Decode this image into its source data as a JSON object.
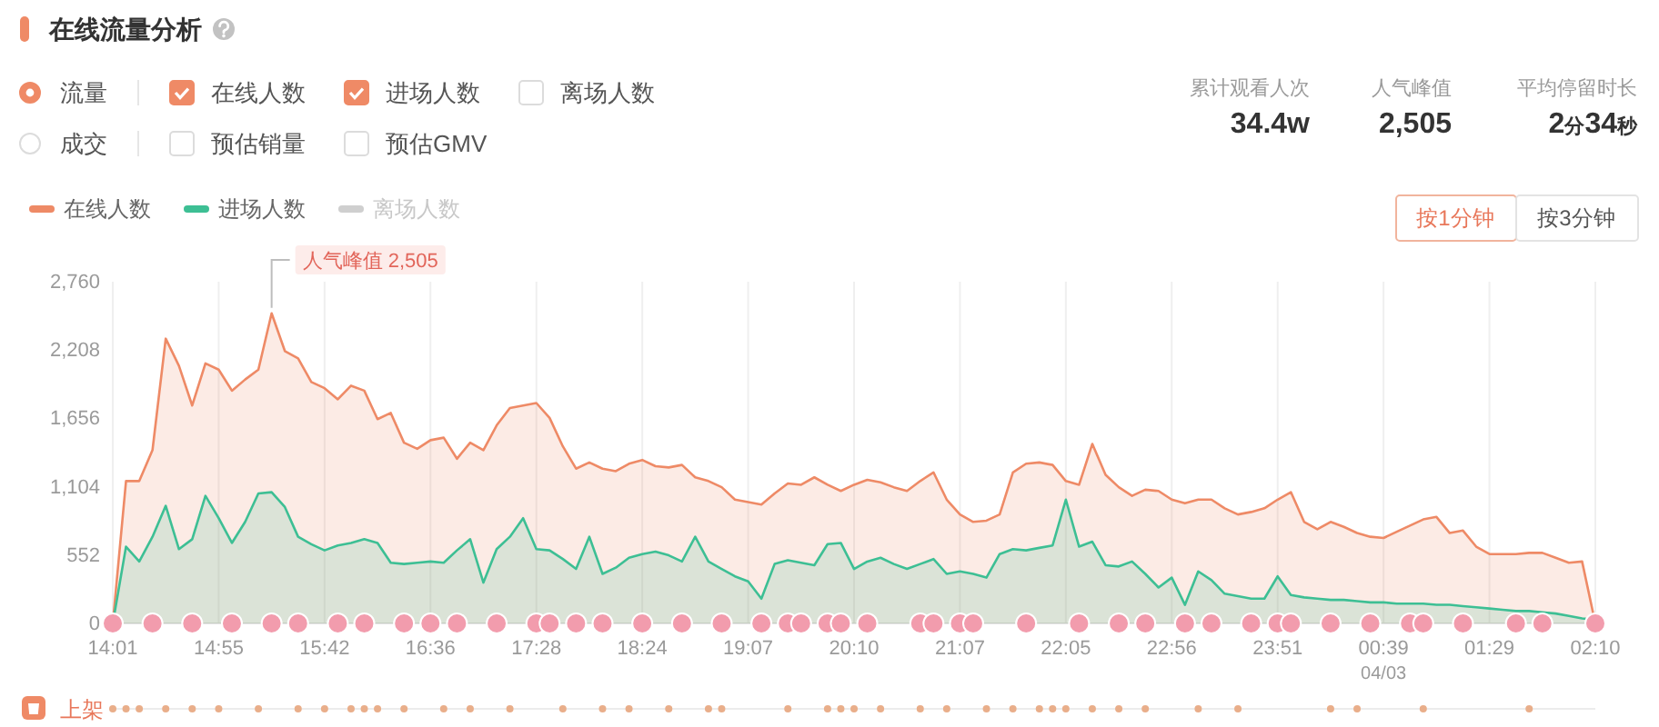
{
  "chart_data": {
    "type": "area",
    "title": "在线流量分析",
    "categories": [
      "14:01",
      null,
      null,
      null,
      null,
      null,
      null,
      null,
      "14:55",
      null,
      null,
      null,
      null,
      null,
      null,
      null,
      "15:42",
      null,
      null,
      null,
      null,
      null,
      null,
      null,
      "16:36",
      null,
      null,
      null,
      null,
      null,
      null,
      null,
      "17:28",
      null,
      null,
      null,
      null,
      null,
      null,
      null,
      "18:24",
      null,
      null,
      null,
      null,
      null,
      null,
      null,
      "19:07",
      null,
      null,
      null,
      null,
      null,
      null,
      null,
      "20:10",
      null,
      null,
      null,
      null,
      null,
      null,
      null,
      "21:07",
      null,
      null,
      null,
      null,
      null,
      null,
      null,
      "22:05",
      null,
      null,
      null,
      null,
      null,
      null,
      null,
      "22:56",
      null,
      null,
      null,
      null,
      null,
      null,
      null,
      "23:51",
      null,
      null,
      null,
      null,
      null,
      null,
      null,
      "00:39\n04/03",
      null,
      null,
      null,
      null,
      null,
      null,
      null,
      "01:29",
      null,
      null,
      null,
      null,
      null,
      null,
      null,
      "02:10"
    ],
    "series": [
      {
        "name": "在线人数",
        "color": "#ee8a66",
        "values": [
          0,
          1150,
          1150,
          1400,
          2300,
          2080,
          1760,
          2100,
          2050,
          1880,
          1970,
          2050,
          2505,
          2200,
          2140,
          1950,
          1900,
          1810,
          1920,
          1880,
          1650,
          1700,
          1460,
          1410,
          1480,
          1500,
          1330,
          1460,
          1400,
          1600,
          1740,
          1760,
          1780,
          1660,
          1430,
          1250,
          1300,
          1250,
          1230,
          1290,
          1320,
          1270,
          1260,
          1280,
          1180,
          1150,
          1100,
          1000,
          980,
          960,
          1050,
          1130,
          1120,
          1180,
          1120,
          1070,
          1120,
          1160,
          1140,
          1100,
          1070,
          1150,
          1220,
          1000,
          880,
          820,
          830,
          880,
          1220,
          1290,
          1300,
          1280,
          1150,
          1120,
          1450,
          1200,
          1100,
          1030,
          1080,
          1070,
          1000,
          970,
          1000,
          1000,
          930,
          880,
          900,
          930,
          1000,
          1060,
          820,
          760,
          820,
          780,
          730,
          700,
          690,
          740,
          790,
          840,
          860,
          730,
          750,
          620,
          560,
          560,
          560,
          570,
          570,
          530,
          490,
          500,
          0
        ]
      },
      {
        "name": "进场人数",
        "color": "#3dbf94",
        "values": [
          0,
          620,
          500,
          700,
          950,
          600,
          680,
          1030,
          850,
          650,
          820,
          1050,
          1060,
          940,
          700,
          640,
          590,
          630,
          650,
          680,
          650,
          490,
          480,
          490,
          500,
          490,
          590,
          680,
          330,
          600,
          700,
          850,
          600,
          590,
          520,
          440,
          700,
          400,
          450,
          530,
          560,
          580,
          550,
          500,
          700,
          500,
          440,
          380,
          340,
          200,
          480,
          510,
          490,
          470,
          640,
          650,
          440,
          500,
          530,
          480,
          440,
          480,
          520,
          400,
          420,
          400,
          370,
          560,
          600,
          590,
          610,
          630,
          1000,
          620,
          660,
          470,
          460,
          500,
          400,
          290,
          370,
          150,
          420,
          350,
          240,
          220,
          200,
          200,
          380,
          230,
          210,
          200,
          190,
          190,
          180,
          170,
          170,
          160,
          160,
          160,
          150,
          150,
          140,
          130,
          120,
          110,
          100,
          100,
          90,
          80,
          60,
          40,
          30
        ]
      },
      {
        "type": "scatter",
        "color": "#f29cad",
        "marker": "circle",
        "values": [
          0,
          null,
          null,
          0,
          null,
          null,
          0,
          null,
          null,
          0,
          null,
          null,
          0,
          null,
          0,
          null,
          null,
          0,
          null,
          0,
          null,
          null,
          0,
          null,
          0,
          null,
          0,
          null,
          null,
          0,
          null,
          null,
          0,
          0,
          null,
          0,
          null,
          0,
          null,
          null,
          0,
          null,
          null,
          0,
          null,
          null,
          0,
          null,
          null,
          0,
          null,
          0,
          0,
          null,
          0,
          0,
          null,
          0,
          null,
          null,
          null,
          0,
          0,
          null,
          0,
          0,
          null,
          null,
          null,
          0,
          null,
          null,
          null,
          0,
          null,
          null,
          0,
          null,
          0,
          null,
          null,
          0,
          null,
          0,
          null,
          null,
          0,
          null,
          0,
          0,
          null,
          null,
          0,
          null,
          null,
          0,
          null,
          null,
          0,
          0,
          null,
          null,
          0,
          null,
          null,
          null,
          0,
          null,
          0,
          null,
          null,
          null,
          0
        ]
      },
      {
        "name": "离场人数",
        "color": "#cfcfcf",
        "values": [
          null,
          null,
          null,
          null,
          null,
          null,
          null,
          null,
          null,
          null,
          null,
          null,
          null,
          null,
          null,
          null,
          null,
          null,
          null,
          null,
          null,
          null,
          null,
          null,
          null,
          null,
          null,
          null,
          null,
          null,
          null,
          null,
          null,
          null,
          null,
          null,
          null,
          null,
          null,
          null,
          null,
          null,
          null,
          null,
          null,
          null,
          null,
          null,
          null,
          null,
          null,
          null,
          null,
          null,
          null,
          null,
          null,
          null,
          null,
          null,
          null,
          null,
          null,
          null,
          null,
          null,
          null,
          null,
          null,
          null,
          null,
          null,
          null,
          null,
          null,
          null,
          null,
          null,
          null,
          null,
          null,
          null,
          null,
          null,
          null,
          null,
          null,
          null,
          null,
          null,
          null,
          null,
          null,
          null,
          null,
          null,
          null,
          null,
          null,
          null,
          null,
          null,
          null,
          null,
          null,
          null,
          null,
          null,
          null,
          null,
          null,
          null,
          null
        ]
      }
    ],
    "ylim": [
      0,
      2760
    ],
    "yticks": [
      0,
      552,
      {
        "value": 1104,
        "label": "1,104"
      },
      {
        "value": 1656,
        "label": "1,656"
      },
      {
        "value": 2208,
        "label": "2,208"
      },
      {
        "value": 2760,
        "label": "2,760"
      }
    ],
    "grid": "x",
    "legend": "top left",
    "annotations": [
      "流量",
      "在线人数",
      "进场人数",
      "离场人数",
      "成交",
      "预估销量",
      "预估GMV",
      "累计观看人次",
      "34.4w",
      "人气峰值",
      "2,505",
      "平均停留时长",
      "2分34秒",
      "按1分钟",
      "按3分钟",
      "人气峰值 2,505",
      "上架"
    ]
  }
}
